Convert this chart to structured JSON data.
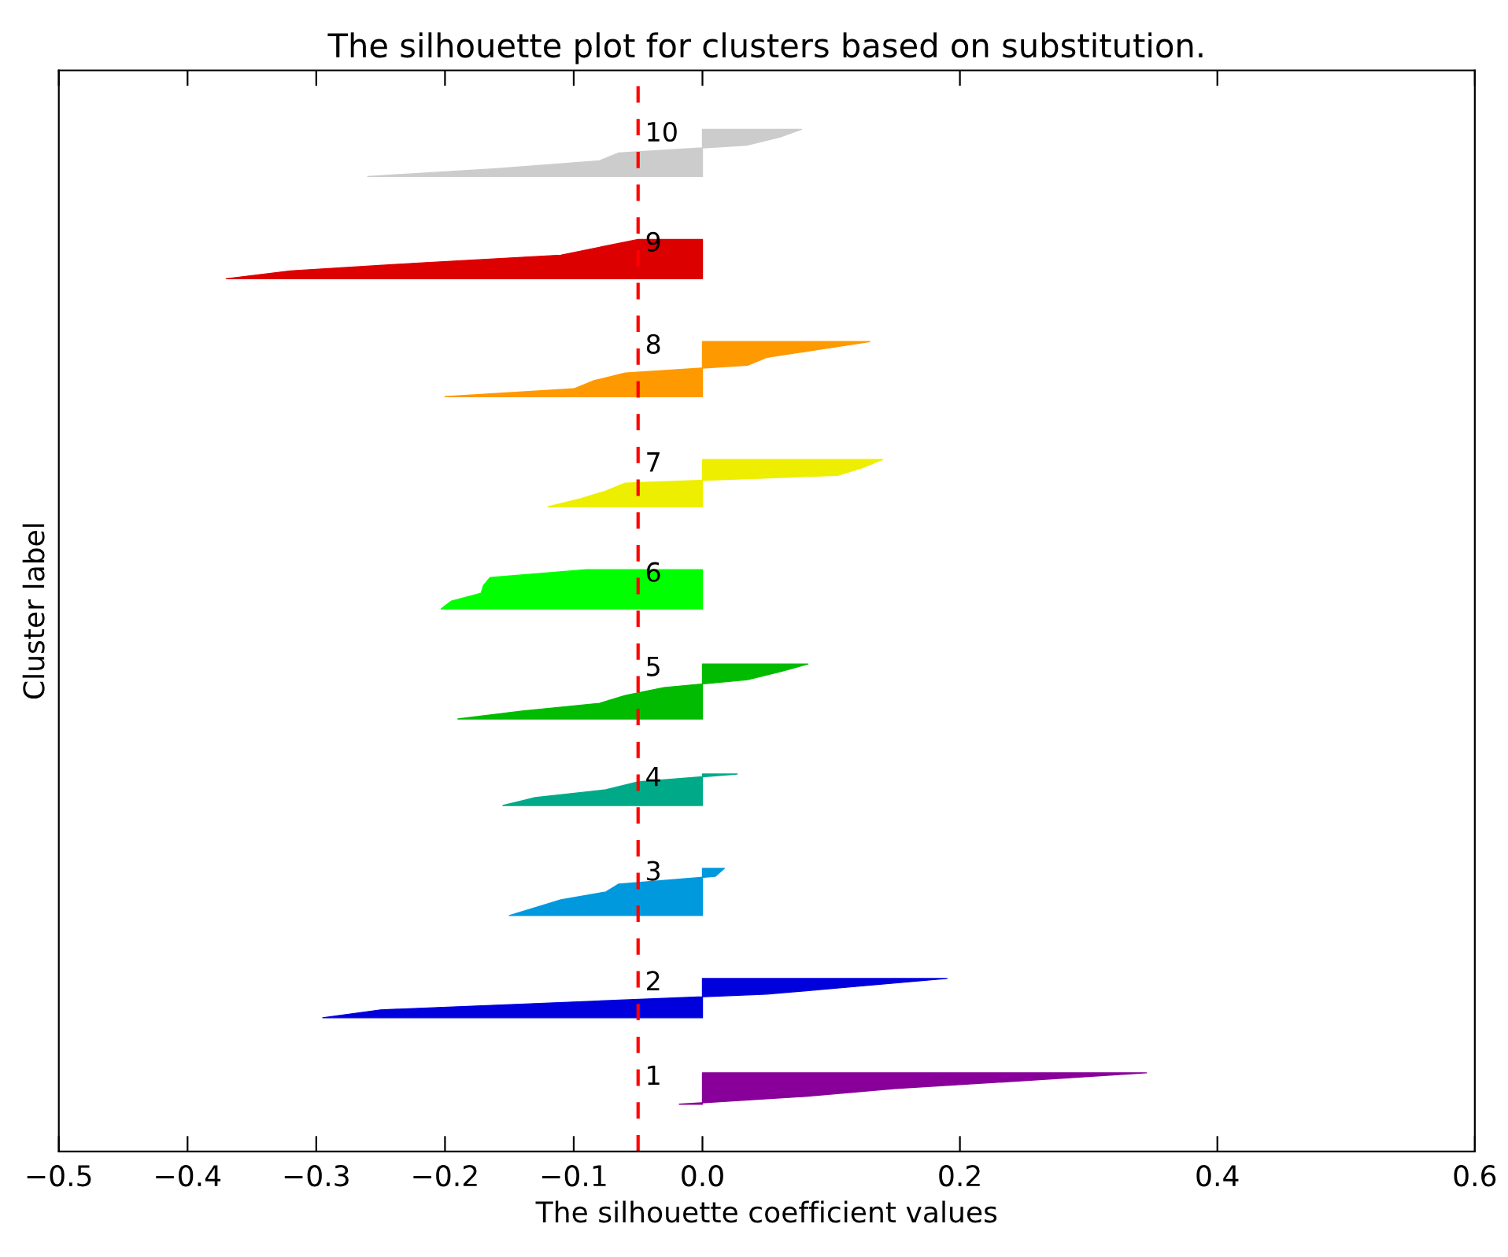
{
  "chart_data": {
    "type": "area",
    "orientation": "horizontal",
    "title": "The silhouette plot for clusters based on substitution.",
    "xlabel": "The silhouette coefficient values",
    "ylabel": "Cluster label",
    "categories": [
      null,
      null,
      null,
      null,
      null,
      null,
      null,
      null,
      null,
      null,
      null,
      null,
      null,
      null,
      null,
      null,
      null,
      null,
      null,
      null,
      null,
      null,
      null,
      null,
      null,
      null,
      null,
      null,
      null,
      null,
      null,
      null,
      null,
      null,
      null,
      null,
      null,
      null,
      null,
      null,
      null,
      null,
      null,
      null,
      null,
      null,
      null,
      null,
      null,
      null,
      null,
      null,
      null,
      null,
      null,
      null,
      null,
      null,
      null,
      null,
      null,
      null,
      null,
      null,
      null,
      null,
      null,
      null,
      null,
      null,
      null,
      null,
      null,
      null,
      null,
      null,
      null,
      null,
      null,
      null,
      null,
      null,
      null,
      null,
      null,
      null,
      null,
      null,
      null,
      null,
      null,
      null,
      null,
      null,
      null,
      null,
      null,
      null,
      null,
      null,
      null,
      null,
      null,
      null,
      null,
      null,
      null,
      null,
      null,
      null,
      null,
      null,
      null,
      null,
      null,
      null,
      null,
      null,
      null,
      null,
      null,
      null,
      null,
      null,
      null,
      null,
      null,
      null,
      null,
      null,
      null,
      null,
      null,
      null,
      null,
      null,
      null
    ],
    "series": [
      {
        "name": "1",
        "color": "#880099",
        "values": [
          null,
          null,
          null,
          null,
          null,
          null,
          null,
          null,
          null,
          null,
          null,
          null,
          null,
          null,
          null,
          null,
          null,
          null,
          null,
          null,
          null,
          null,
          null,
          null,
          null,
          null,
          null,
          null,
          null,
          null,
          null,
          null,
          null,
          null,
          null,
          null,
          null,
          null,
          null,
          null,
          null,
          null,
          null,
          null,
          null,
          null,
          null,
          null,
          null,
          null,
          null,
          null,
          null,
          null,
          null,
          null,
          null,
          null,
          null,
          null,
          null,
          null,
          null,
          null,
          null,
          null,
          null,
          null,
          null,
          null,
          null,
          null,
          null,
          null,
          null,
          null,
          null,
          null,
          null,
          null,
          null,
          null,
          null,
          null,
          null,
          null,
          null,
          null,
          null,
          null,
          null,
          null,
          null,
          null,
          null,
          null,
          null,
          null,
          null,
          null,
          null,
          null,
          null,
          null,
          null,
          null,
          null,
          null,
          null,
          null,
          null,
          null,
          null,
          null,
          null,
          null,
          null,
          null,
          null,
          null,
          null,
          null,
          null,
          null,
          null,
          null,
          null,
          0.345,
          0.25,
          0.15,
          0.08,
          -0.018,
          null,
          null,
          null,
          null,
          null
        ]
      },
      {
        "name": "2",
        "color": "#0000dd",
        "values": [
          null,
          null,
          null,
          null,
          null,
          null,
          null,
          null,
          null,
          null,
          null,
          null,
          null,
          null,
          null,
          null,
          null,
          null,
          null,
          null,
          null,
          null,
          null,
          null,
          null,
          null,
          null,
          null,
          null,
          null,
          null,
          null,
          null,
          null,
          null,
          null,
          null,
          null,
          null,
          null,
          null,
          null,
          null,
          null,
          null,
          null,
          null,
          null,
          null,
          null,
          null,
          null,
          null,
          null,
          null,
          null,
          null,
          null,
          null,
          null,
          null,
          null,
          null,
          null,
          null,
          null,
          null,
          null,
          null,
          null,
          null,
          null,
          null,
          null,
          null,
          null,
          null,
          null,
          null,
          null,
          null,
          null,
          null,
          null,
          null,
          null,
          null,
          null,
          null,
          null,
          null,
          null,
          null,
          null,
          null,
          null,
          null,
          null,
          null,
          null,
          null,
          null,
          null,
          null,
          null,
          null,
          null,
          null,
          null,
          null,
          null,
          null,
          null,
          null,
          null,
          0.19,
          0.12,
          0.05,
          -0.1,
          -0.25,
          -0.295,
          null,
          null,
          null,
          null,
          null,
          null,
          null,
          null,
          null,
          null,
          null,
          null,
          null,
          null,
          null,
          null
        ]
      },
      {
        "name": "3",
        "color": "#0099dd",
        "values": [
          null,
          null,
          null,
          null,
          null,
          null,
          null,
          null,
          null,
          null,
          null,
          null,
          null,
          null,
          null,
          null,
          null,
          null,
          null,
          null,
          null,
          null,
          null,
          null,
          null,
          null,
          null,
          null,
          null,
          null,
          null,
          null,
          null,
          null,
          null,
          null,
          null,
          null,
          null,
          null,
          null,
          null,
          null,
          null,
          null,
          null,
          null,
          null,
          null,
          null,
          null,
          null,
          null,
          null,
          null,
          null,
          null,
          null,
          null,
          null,
          null,
          null,
          null,
          null,
          null,
          null,
          null,
          null,
          null,
          null,
          null,
          null,
          null,
          null,
          null,
          null,
          null,
          null,
          null,
          null,
          null,
          null,
          null,
          null,
          null,
          null,
          null,
          null,
          null,
          null,
          null,
          null,
          null,
          null,
          null,
          null,
          null,
          null,
          null,
          null,
          null,
          0.017,
          0.01,
          -0.065,
          -0.075,
          -0.11,
          -0.13,
          -0.15,
          null,
          null,
          null,
          null,
          null,
          null,
          null,
          null,
          null,
          null,
          null,
          null,
          null,
          null,
          null,
          null,
          null,
          null,
          null,
          null,
          null,
          null,
          null,
          null,
          null,
          null,
          null,
          null,
          null
        ]
      },
      {
        "name": "4",
        "color": "#00aa88",
        "values": [
          null,
          null,
          null,
          null,
          null,
          null,
          null,
          null,
          null,
          null,
          null,
          null,
          null,
          null,
          null,
          null,
          null,
          null,
          null,
          null,
          null,
          null,
          null,
          null,
          null,
          null,
          null,
          null,
          null,
          null,
          null,
          null,
          null,
          null,
          null,
          null,
          null,
          null,
          null,
          null,
          null,
          null,
          null,
          null,
          null,
          null,
          null,
          null,
          null,
          null,
          null,
          null,
          null,
          null,
          null,
          null,
          null,
          null,
          null,
          null,
          null,
          null,
          null,
          null,
          null,
          null,
          null,
          null,
          null,
          null,
          null,
          null,
          null,
          null,
          null,
          null,
          null,
          null,
          null,
          null,
          null,
          null,
          null,
          null,
          null,
          null,
          null,
          null,
          null,
          0.027,
          -0.05,
          -0.075,
          -0.13,
          -0.155,
          null,
          null,
          null,
          null,
          null,
          null,
          null,
          null,
          null,
          null,
          null,
          null,
          null,
          null,
          null,
          null,
          null,
          null,
          null,
          null,
          null,
          null,
          null,
          null,
          null,
          null,
          null,
          null,
          null,
          null,
          null,
          null,
          null,
          null,
          null,
          null,
          null,
          null,
          null,
          null,
          null,
          null,
          null
        ]
      },
      {
        "name": "5",
        "color": "#00bb00",
        "values": [
          null,
          null,
          null,
          null,
          null,
          null,
          null,
          null,
          null,
          null,
          null,
          null,
          null,
          null,
          null,
          null,
          null,
          null,
          null,
          null,
          null,
          null,
          null,
          null,
          null,
          null,
          null,
          null,
          null,
          null,
          null,
          null,
          null,
          null,
          null,
          null,
          null,
          null,
          null,
          null,
          null,
          null,
          null,
          null,
          null,
          null,
          null,
          null,
          null,
          null,
          null,
          null,
          null,
          null,
          null,
          null,
          null,
          null,
          null,
          null,
          null,
          null,
          null,
          null,
          null,
          null,
          null,
          null,
          null,
          null,
          null,
          null,
          null,
          null,
          null,
          0.082,
          0.06,
          0.035,
          -0.03,
          -0.06,
          -0.08,
          -0.14,
          -0.19,
          null,
          null,
          null,
          null,
          null,
          null,
          null,
          null,
          null,
          null,
          null,
          null,
          null,
          null,
          null,
          null,
          null,
          null,
          null,
          null,
          null,
          null,
          null,
          null,
          null,
          null,
          null,
          null,
          null,
          null,
          null,
          null,
          null,
          null,
          null,
          null,
          null,
          null,
          null,
          null,
          null,
          null,
          null,
          null,
          null,
          null,
          null,
          null,
          null,
          null,
          null,
          null,
          null,
          null
        ]
      },
      {
        "name": "6",
        "color": "#00ff00",
        "values": [
          null,
          null,
          null,
          null,
          null,
          null,
          null,
          null,
          null,
          null,
          null,
          null,
          null,
          null,
          null,
          null,
          null,
          null,
          null,
          null,
          null,
          null,
          null,
          null,
          null,
          null,
          null,
          null,
          null,
          null,
          null,
          null,
          null,
          null,
          null,
          null,
          null,
          null,
          null,
          null,
          null,
          null,
          null,
          null,
          null,
          null,
          null,
          null,
          null,
          null,
          null,
          null,
          null,
          null,
          null,
          null,
          null,
          null,
          null,
          null,
          null,
          null,
          null,
          -0.09,
          -0.165,
          -0.17,
          -0.172,
          -0.195,
          -0.203,
          null,
          null,
          null,
          null,
          null,
          null,
          null,
          null,
          null,
          null,
          null,
          null,
          null,
          null,
          null,
          null,
          null,
          null,
          null,
          null,
          null,
          null,
          null,
          null,
          null,
          null,
          null,
          null,
          null,
          null,
          null,
          null,
          null,
          null,
          null,
          null,
          null,
          null,
          null,
          null,
          null,
          null,
          null,
          null,
          null,
          null,
          null,
          null,
          null,
          null,
          null,
          null,
          null,
          null,
          null,
          null,
          null,
          null,
          null,
          null,
          null,
          null,
          null,
          null,
          null,
          null,
          null,
          null
        ]
      },
      {
        "name": "7",
        "color": "#eeee00",
        "values": [
          null,
          null,
          null,
          null,
          null,
          null,
          null,
          null,
          null,
          null,
          null,
          null,
          null,
          null,
          null,
          null,
          null,
          null,
          null,
          null,
          null,
          null,
          null,
          null,
          null,
          null,
          null,
          null,
          null,
          null,
          null,
          null,
          null,
          null,
          null,
          null,
          null,
          null,
          null,
          null,
          null,
          null,
          null,
          null,
          null,
          null,
          null,
          null,
          null,
          0.14,
          0.125,
          0.105,
          -0.06,
          -0.075,
          -0.095,
          -0.12,
          null,
          null,
          null,
          null,
          null,
          null,
          null,
          null,
          null,
          null,
          null,
          null,
          null,
          null,
          null,
          null,
          null,
          null,
          null,
          null,
          null,
          null,
          null,
          null,
          null,
          null,
          null,
          null,
          null,
          null,
          null,
          null,
          null,
          null,
          null,
          null,
          null,
          null,
          null,
          null,
          null,
          null,
          null,
          null,
          null,
          null,
          null,
          null,
          null,
          null,
          null,
          null,
          null,
          null,
          null,
          null,
          null,
          null,
          null,
          null,
          null,
          null,
          null,
          null,
          null,
          null,
          null,
          null,
          null,
          null,
          null,
          null,
          null,
          null,
          null,
          null,
          null,
          null,
          null,
          null,
          null
        ]
      },
      {
        "name": "8",
        "color": "#ff9900",
        "values": [
          null,
          null,
          null,
          null,
          null,
          null,
          null,
          null,
          null,
          null,
          null,
          null,
          null,
          null,
          null,
          null,
          null,
          null,
          null,
          null,
          null,
          null,
          null,
          null,
          null,
          null,
          null,
          null,
          null,
          null,
          null,
          null,
          null,
          null,
          0.13,
          0.09,
          0.05,
          0.035,
          -0.06,
          -0.085,
          -0.1,
          -0.2,
          null,
          null,
          null,
          null,
          null,
          null,
          null,
          null,
          null,
          null,
          null,
          null,
          null,
          null,
          null,
          null,
          null,
          null,
          null,
          null,
          null,
          null,
          null,
          null,
          null,
          null,
          null,
          null,
          null,
          null,
          null,
          null,
          null,
          null,
          null,
          null,
          null,
          null,
          null,
          null,
          null,
          null,
          null,
          null,
          null,
          null,
          null,
          null,
          null,
          null,
          null,
          null,
          null,
          null,
          null,
          null,
          null,
          null,
          null,
          null,
          null,
          null,
          null,
          null,
          null,
          null,
          null,
          null,
          null,
          null,
          null,
          null,
          null,
          null,
          null,
          null,
          null,
          null,
          null,
          null,
          null,
          null,
          null,
          null,
          null,
          null,
          null,
          null,
          null,
          null,
          null,
          null,
          null,
          null,
          null
        ]
      },
      {
        "name": "9",
        "color": "#dd0000",
        "values": [
          null,
          null,
          null,
          null,
          null,
          null,
          null,
          null,
          null,
          null,
          null,
          null,
          null,
          null,
          null,
          null,
          null,
          null,
          null,
          null,
          null,
          -0.05,
          -0.08,
          -0.11,
          -0.22,
          -0.32,
          -0.37,
          null,
          null,
          null,
          null,
          null,
          null,
          null,
          null,
          null,
          null,
          null,
          null,
          null,
          null,
          null,
          null,
          null,
          null,
          null,
          null,
          null,
          null,
          null,
          null,
          null,
          null,
          null,
          null,
          null,
          null,
          null,
          null,
          null,
          null,
          null,
          null,
          null,
          null,
          null,
          null,
          null,
          null,
          null,
          null,
          null,
          null,
          null,
          null,
          null,
          null,
          null,
          null,
          null,
          null,
          null,
          null,
          null,
          null,
          null,
          null,
          null,
          null,
          null,
          null,
          null,
          null,
          null,
          null,
          null,
          null,
          null,
          null,
          null,
          null,
          null,
          null,
          null,
          null,
          null,
          null,
          null,
          null,
          null,
          null,
          null,
          null,
          null,
          null,
          null,
          null,
          null,
          null,
          null,
          null,
          null,
          null,
          null,
          null,
          null,
          null,
          null,
          null,
          null,
          null,
          null,
          null,
          null,
          null,
          null,
          null
        ]
      },
      {
        "name": "10",
        "color": "#cccccc",
        "values": [
          null,
          null,
          null,
          null,
          null,
          null,
          null,
          0.077,
          0.06,
          0.035,
          -0.065,
          -0.08,
          -0.16,
          -0.26,
          null,
          null,
          null,
          null,
          null,
          null,
          null,
          null,
          null,
          null,
          null,
          null,
          null,
          null,
          null,
          null,
          null,
          null,
          null,
          null,
          null,
          null,
          null,
          null,
          null,
          null,
          null,
          null,
          null,
          null,
          null,
          null,
          null,
          null,
          null,
          null,
          null,
          null,
          null,
          null,
          null,
          null,
          null,
          null,
          null,
          null,
          null,
          null,
          null,
          null,
          null,
          null,
          null,
          null,
          null,
          null,
          null,
          null,
          null,
          null,
          null,
          null,
          null,
          null,
          null,
          null,
          null,
          null,
          null,
          null,
          null,
          null,
          null,
          null,
          null,
          null,
          null,
          null,
          null,
          null,
          null,
          null,
          null,
          null,
          null,
          null,
          null,
          null,
          null,
          null,
          null,
          null,
          null,
          null,
          null,
          null,
          null,
          null,
          null,
          null,
          null,
          null,
          null,
          null,
          null,
          null,
          null,
          null,
          null,
          null,
          null,
          null,
          null,
          null,
          null,
          null,
          null,
          null,
          null,
          null,
          null,
          null,
          null
        ]
      }
    ],
    "ref_lines": [
      {
        "axis": "x",
        "value": -0.05,
        "color": "#ff0000",
        "line_style": "dashed"
      }
    ],
    "xlim": [
      -0.5,
      0.6
    ],
    "xticks": [
      {
        "value": -0.5,
        "label": "−0.5"
      },
      {
        "value": -0.4,
        "label": "−0.4"
      },
      {
        "value": -0.3,
        "label": "−0.3"
      },
      {
        "value": -0.2,
        "label": "−0.2"
      },
      {
        "value": -0.1,
        "label": "−0.1"
      },
      {
        "value": 0.0,
        "label": "0.0"
      },
      0.2,
      0.4,
      0.6
    ],
    "tick_labels": "x"
  }
}
